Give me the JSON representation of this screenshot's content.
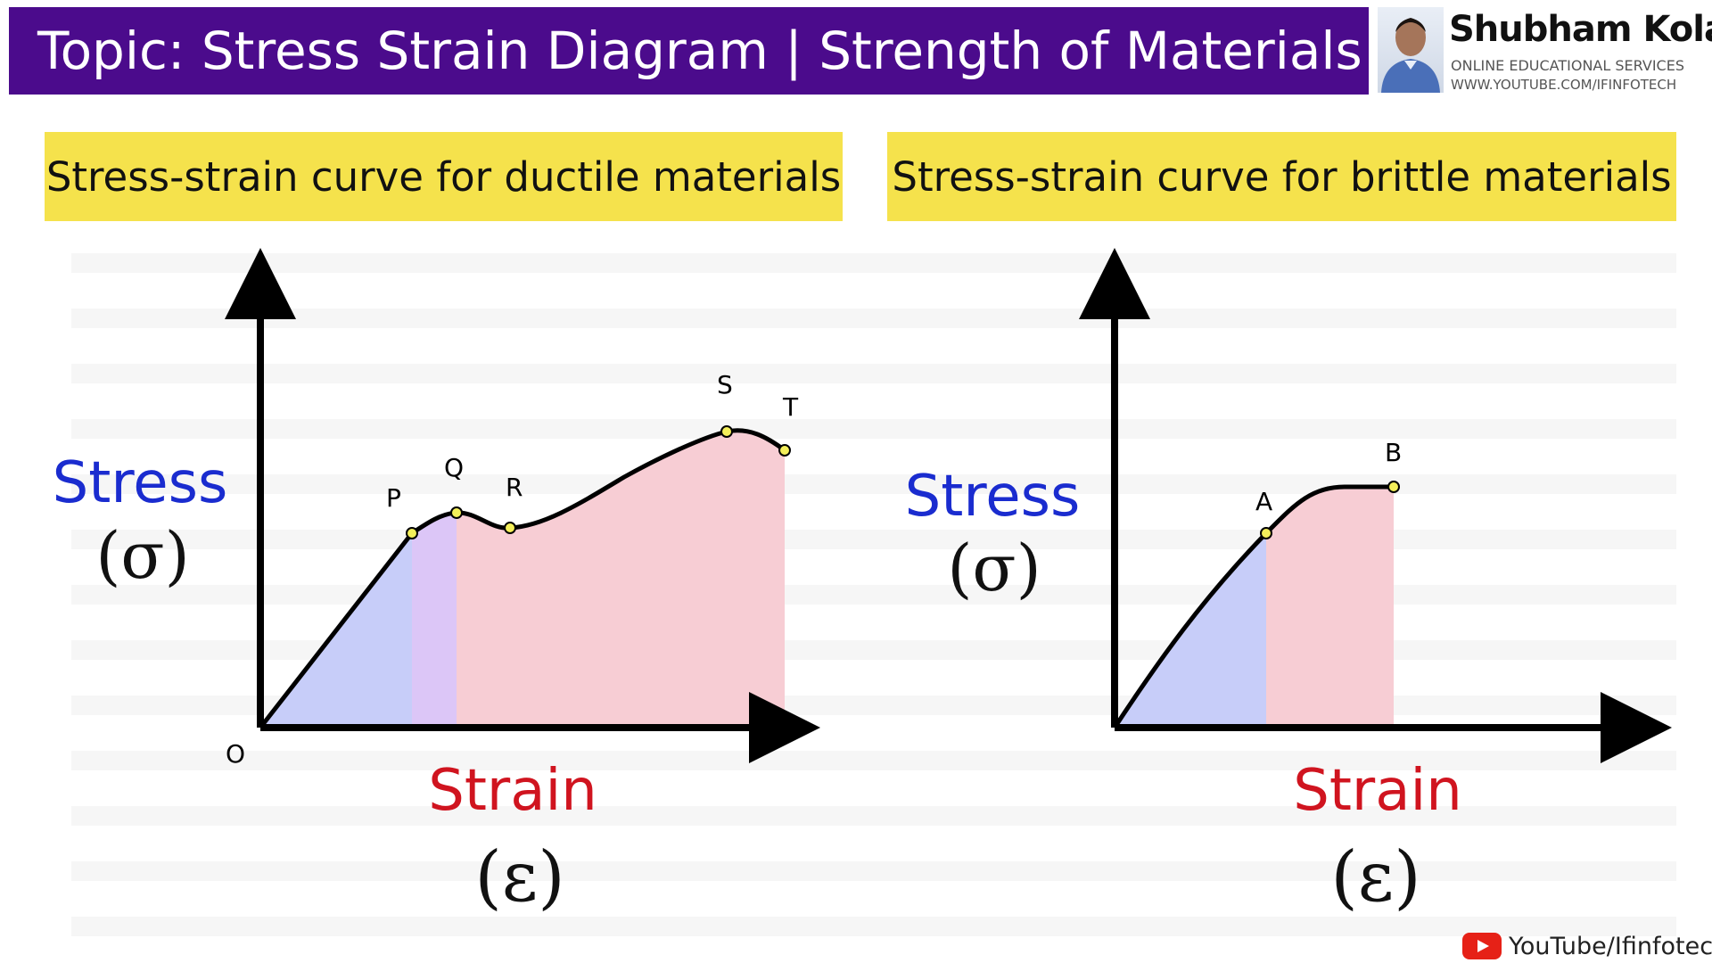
{
  "header": {
    "title": "Topic: Stress Strain Diagram | Strength of Materials",
    "bg_color": "#4b0b8c"
  },
  "brand": {
    "name": "Shubham Kola",
    "line1": "ONLINE EDUCATIONAL SERVICES",
    "line2": "WWW.YOUTUBE.COM/IFINFOTECH"
  },
  "panels": {
    "ductile": {
      "title": "Stress-strain curve for ductile materials",
      "y_label": "Stress",
      "y_symbol": "(σ)",
      "x_label": "Strain",
      "x_symbol": "(ε)",
      "points": {
        "origin": "O",
        "P": "P",
        "Q": "Q",
        "R": "R",
        "S": "S",
        "T": "T"
      }
    },
    "brittle": {
      "title": "Stress-strain curve for brittle materials",
      "y_label": "Stress",
      "y_symbol": "(σ)",
      "x_label": "Strain",
      "x_symbol": "(ε)",
      "points": {
        "A": "A",
        "B": "B"
      }
    }
  },
  "colors": {
    "title_bg": "#f5e24c",
    "stress_label": "#1a2ccf",
    "strain_label": "#d0141f",
    "elastic_fill": "#c7cdf9",
    "yield_fill": "#dcc6f7",
    "plastic_fill": "#f7cdd4",
    "point_marker": "#f4ef5a"
  },
  "footer": {
    "text": "YouTube/Ifinfotech",
    "icon": "youtube-icon"
  }
}
